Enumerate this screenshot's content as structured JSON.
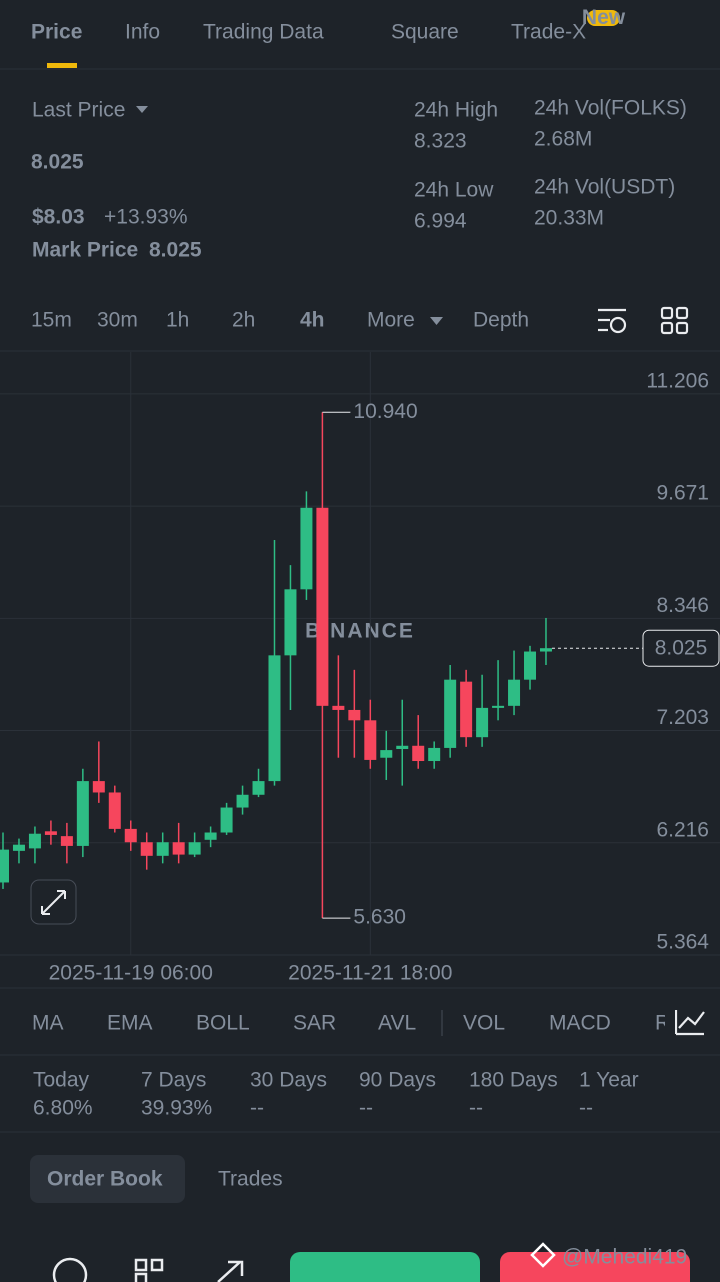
{
  "tabs": [
    "Price",
    "Info",
    "Trading Data",
    "Square",
    "Trade-X"
  ],
  "tab_badge": "New",
  "summary": {
    "last_price_label": "Last Price",
    "last_price": "8.025",
    "usd_price": "$8.03",
    "change": "+13.93%",
    "mark_price_label": "Mark Price",
    "mark_price": "8.025",
    "stats": [
      {
        "label": "24h High",
        "value": "8.323"
      },
      {
        "label": "24h Vol(FOLKS)",
        "value": "2.68M"
      },
      {
        "label": "24h Low",
        "value": "6.994"
      },
      {
        "label": "24h Vol(USDT)",
        "value": "20.33M"
      }
    ]
  },
  "intervals": [
    "15m",
    "30m",
    "1h",
    "2h",
    "4h",
    "More",
    "Depth"
  ],
  "active_interval": "4h",
  "chart_data": {
    "type": "candlestick",
    "watermark": "BINANCE",
    "categories": [
      null,
      null,
      null,
      null,
      null,
      null,
      null,
      null,
      "2025-11-19 06:00",
      null,
      null,
      null,
      null,
      null,
      null,
      null,
      null,
      null,
      null,
      null,
      null,
      null,
      null,
      "2025-11-21 18:00",
      null,
      null,
      null,
      null,
      null,
      null,
      null,
      null,
      null,
      null,
      null
    ],
    "open": [
      5.9,
      6.15,
      6.17,
      6.31,
      6.27,
      6.19,
      6.74,
      6.64,
      6.33,
      6.22,
      6.11,
      6.22,
      6.12,
      6.24,
      6.3,
      6.51,
      6.62,
      6.74,
      7.95,
      8.67,
      9.65,
      7.44,
      7.4,
      7.3,
      6.95,
      7.03,
      7.06,
      6.92,
      7.04,
      7.68,
      7.14,
      7.42,
      7.44,
      7.7,
      7.99
    ],
    "high": [
      6.3,
      6.25,
      6.35,
      6.4,
      6.38,
      6.85,
      7.1,
      6.7,
      6.4,
      6.3,
      6.3,
      6.38,
      6.3,
      6.35,
      6.55,
      6.7,
      6.85,
      9.25,
      8.95,
      9.86,
      10.94,
      7.95,
      7.8,
      7.5,
      7.2,
      7.5,
      7.35,
      7.1,
      7.85,
      7.8,
      7.75,
      7.9,
      8.0,
      8.05,
      8.35
    ],
    "low": [
      5.85,
      6.05,
      6.05,
      6.2,
      6.05,
      6.1,
      6.55,
      6.3,
      6.15,
      6.0,
      6.05,
      6.05,
      6.1,
      6.18,
      6.28,
      6.45,
      6.6,
      6.7,
      7.4,
      8.55,
      5.63,
      6.95,
      6.95,
      6.85,
      6.75,
      6.7,
      6.85,
      6.85,
      6.95,
      7.05,
      7.05,
      7.3,
      7.35,
      7.6,
      7.85
    ],
    "close": [
      6.16,
      6.2,
      6.29,
      6.28,
      6.19,
      6.74,
      6.64,
      6.33,
      6.22,
      6.11,
      6.22,
      6.12,
      6.22,
      6.3,
      6.51,
      6.62,
      6.74,
      7.95,
      8.67,
      9.65,
      7.44,
      7.4,
      7.3,
      6.93,
      7.02,
      7.06,
      6.92,
      7.04,
      7.7,
      7.14,
      7.42,
      7.44,
      7.7,
      7.99,
      8.025
    ],
    "colors": {
      "up": "#2ebd85",
      "down": "#f6465d"
    },
    "ylim": [
      5.364,
      11.84
    ],
    "ylog": true,
    "yticks": [
      11.206,
      9.671,
      8.346,
      7.203,
      6.216,
      5.364
    ],
    "grid": true,
    "annotations": [
      {
        "value": 10.94,
        "label": "10.940"
      },
      {
        "value": 5.63,
        "label": "5.630"
      }
    ],
    "last_price": 8.025
  },
  "indicators": [
    "MA",
    "EMA",
    "BOLL",
    "SAR",
    "AVL",
    "VOL",
    "MACD",
    "R"
  ],
  "performance": [
    {
      "label": "Today",
      "value": "6.80%"
    },
    {
      "label": "7 Days",
      "value": "39.93%"
    },
    {
      "label": "30 Days",
      "value": "--"
    },
    {
      "label": "90 Days",
      "value": "--"
    },
    {
      "label": "180 Days",
      "value": "--"
    },
    {
      "label": "1 Year",
      "value": "--"
    }
  ],
  "book_tabs": [
    "Order Book",
    "Trades"
  ],
  "watermark": "@Mehedi419"
}
